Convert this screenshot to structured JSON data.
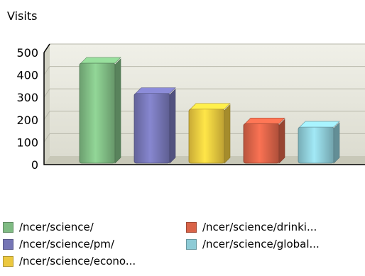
{
  "chart_data": {
    "type": "bar",
    "title": "Visits",
    "categories": [
      "/ncer/science/",
      "/ncer/science/pm/",
      "/ncer/science/econo...",
      "/ncer/science/drinki...",
      "/ncer/science/global..."
    ],
    "values": [
      440,
      305,
      235,
      170,
      155
    ],
    "colors": [
      "#7fbb83",
      "#7575b5",
      "#ecc83f",
      "#d96348",
      "#8dcbd6"
    ],
    "ylim": [
      0,
      500
    ],
    "yticks": [
      0,
      100,
      200,
      300,
      400,
      500
    ],
    "grid": true,
    "legend": "bottom"
  }
}
